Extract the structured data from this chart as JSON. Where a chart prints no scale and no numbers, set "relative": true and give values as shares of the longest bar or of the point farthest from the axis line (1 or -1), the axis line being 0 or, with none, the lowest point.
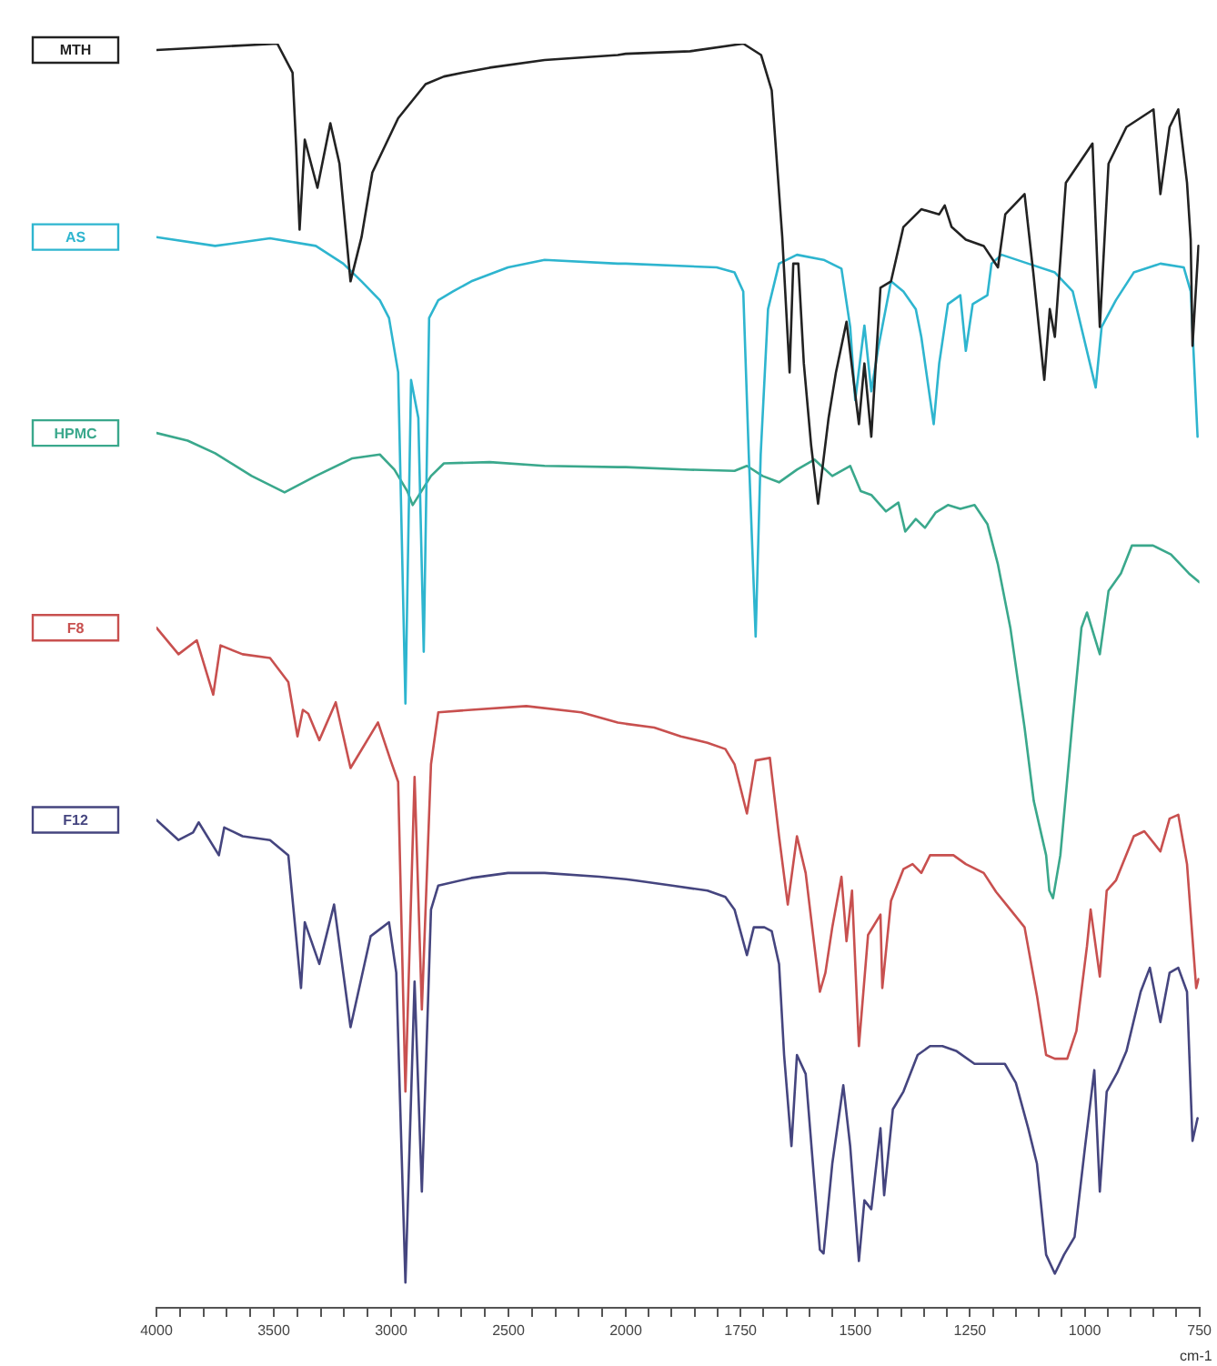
{
  "chart_data": [
    {
      "type": "line",
      "relative": true,
      "xlim": [
        4000,
        2000
      ],
      "xticks": [
        4000,
        {
          "value": 3900,
          "label": null
        },
        {
          "value": 3800,
          "label": null
        },
        {
          "value": 3700,
          "label": null
        },
        {
          "value": 3600,
          "label": null
        },
        3500,
        {
          "value": 3400,
          "label": null
        },
        {
          "value": 3300,
          "label": null
        },
        {
          "value": 3200,
          "label": null
        },
        {
          "value": 3100,
          "label": null
        },
        3000,
        {
          "value": 2900,
          "label": null
        },
        {
          "value": 2800,
          "label": null
        },
        {
          "value": 2700,
          "label": null
        },
        {
          "value": 2600,
          "label": null
        },
        2500,
        {
          "value": 2400,
          "label": null
        },
        {
          "value": 2300,
          "label": null
        },
        {
          "value": 2200,
          "label": null
        },
        {
          "value": 2100,
          "label": null
        },
        2000
      ],
      "series": [
        {
          "name": "MTH",
          "color": "#222222",
          "x": [
            4000,
            3485,
            3420,
            3405,
            3390,
            3368,
            3314,
            3259,
            3220,
            3173,
            3126,
            3080,
            2970,
            2853,
            2775,
            2697,
            2580,
            2346,
            2034,
            2000
          ],
          "values": [
            0.995,
            1.0,
            0.977,
            0.92,
            0.853,
            0.924,
            0.886,
            0.937,
            0.905,
            0.812,
            0.847,
            0.898,
            0.941,
            0.968,
            0.974,
            0.977,
            0.981,
            0.987,
            0.991,
            0.992
          ]
        },
        {
          "name": "AS",
          "color": "#2eb5cf",
          "x": [
            4000,
            3750,
            3516,
            3321,
            3204,
            3126,
            3048,
            3009,
            2970,
            2939,
            2915,
            2884,
            2861,
            2838,
            2799,
            2736,
            2658,
            2502,
            2346,
            2034,
            2000
          ],
          "values": [
            0.847,
            0.84,
            0.846,
            0.84,
            0.826,
            0.812,
            0.797,
            0.783,
            0.74,
            0.478,
            0.734,
            0.704,
            0.519,
            0.783,
            0.797,
            0.804,
            0.812,
            0.823,
            0.829,
            0.826,
            0.826
          ]
        },
        {
          "name": "HPMC",
          "color": "#3aa88c",
          "x": [
            4000,
            3867,
            3750,
            3594,
            3454,
            3321,
            3165,
            3048,
            2986,
            2931,
            2908,
            2830,
            2775,
            2580,
            2346,
            2034,
            2000
          ],
          "values": [
            0.692,
            0.686,
            0.676,
            0.658,
            0.645,
            0.658,
            0.672,
            0.675,
            0.663,
            0.646,
            0.635,
            0.658,
            0.668,
            0.669,
            0.666,
            0.665,
            0.665
          ]
        },
        {
          "name": "F8",
          "color": "#c8504f",
          "x": [
            4000,
            3906,
            3828,
            3758,
            3727,
            3633,
            3516,
            3438,
            3399,
            3376,
            3353,
            3306,
            3236,
            3173,
            3056,
            3002,
            2970,
            2939,
            2900,
            2869,
            2830,
            2799,
            2658,
            2424,
            2190,
            2034,
            2000
          ],
          "values": [
            0.538,
            0.517,
            0.528,
            0.485,
            0.524,
            0.517,
            0.514,
            0.495,
            0.452,
            0.473,
            0.47,
            0.449,
            0.479,
            0.427,
            0.463,
            0.433,
            0.416,
            0.171,
            0.42,
            0.236,
            0.43,
            0.471,
            0.473,
            0.476,
            0.471,
            0.463,
            0.462
          ]
        },
        {
          "name": "F12",
          "color": "#45457f",
          "x": [
            4000,
            3906,
            3844,
            3820,
            3734,
            3711,
            3633,
            3516,
            3438,
            3384,
            3368,
            3306,
            3243,
            3173,
            3087,
            3009,
            2978,
            2939,
            2900,
            2869,
            2830,
            2799,
            2658,
            2502,
            2346,
            2112,
            2000
          ],
          "values": [
            0.386,
            0.37,
            0.376,
            0.384,
            0.358,
            0.38,
            0.373,
            0.37,
            0.358,
            0.253,
            0.305,
            0.272,
            0.319,
            0.222,
            0.294,
            0.305,
            0.265,
            0.02,
            0.258,
            0.092,
            0.315,
            0.334,
            0.34,
            0.344,
            0.344,
            0.341,
            0.339
          ]
        }
      ]
    },
    {
      "type": "line",
      "relative": true,
      "xlabel": "cm-1",
      "xlim": [
        2000,
        750
      ],
      "xticks": [
        {
          "value": 2000,
          "label": null
        },
        {
          "value": 1950,
          "label": null
        },
        {
          "value": 1900,
          "label": null
        },
        {
          "value": 1850,
          "label": null
        },
        {
          "value": 1800,
          "label": null
        },
        1750,
        {
          "value": 1700,
          "label": null
        },
        {
          "value": 1650,
          "label": null
        },
        {
          "value": 1600,
          "label": null
        },
        {
          "value": 1550,
          "label": null
        },
        1500,
        {
          "value": 1450,
          "label": null
        },
        {
          "value": 1400,
          "label": null
        },
        {
          "value": 1350,
          "label": null
        },
        {
          "value": 1300,
          "label": null
        },
        1250,
        {
          "value": 1200,
          "label": null
        },
        {
          "value": 1150,
          "label": null
        },
        {
          "value": 1100,
          "label": null
        },
        {
          "value": 1050,
          "label": null
        },
        1000,
        {
          "value": 950,
          "label": null
        },
        {
          "value": 900,
          "label": null
        },
        {
          "value": 850,
          "label": null
        },
        {
          "value": 800,
          "label": null
        },
        750
      ],
      "series": [
        {
          "color": "#222222",
          "x": [
            2000,
            1860,
            1744,
            1705,
            1682,
            1659,
            1643,
            1635,
            1624,
            1612,
            1596,
            1581,
            1558,
            1542,
            1519,
            1492,
            1480,
            1465,
            1445,
            1422,
            1395,
            1356,
            1317,
            1305,
            1290,
            1259,
            1220,
            1189,
            1173,
            1131,
            1112,
            1088,
            1076,
            1065,
            1041,
            983,
            967,
            948,
            909,
            850,
            835,
            815,
            796,
            777,
            769,
            765,
            752
          ],
          "values": [
            0.992,
            0.994,
            1.0,
            0.991,
            0.963,
            0.847,
            0.74,
            0.826,
            0.826,
            0.747,
            0.682,
            0.636,
            0.704,
            0.74,
            0.78,
            0.699,
            0.747,
            0.689,
            0.807,
            0.812,
            0.855,
            0.869,
            0.865,
            0.872,
            0.855,
            0.845,
            0.84,
            0.823,
            0.865,
            0.881,
            0.819,
            0.734,
            0.79,
            0.768,
            0.89,
            0.921,
            0.776,
            0.905,
            0.934,
            0.948,
            0.881,
            0.934,
            0.948,
            0.89,
            0.845,
            0.761,
            0.84
          ]
        },
        {
          "color": "#2eb5cf",
          "x": [
            2000,
            1802,
            1763,
            1744,
            1732,
            1717,
            1706,
            1690,
            1666,
            1627,
            1569,
            1530,
            1511,
            1500,
            1480,
            1465,
            1449,
            1422,
            1395,
            1368,
            1356,
            1329,
            1317,
            1298,
            1271,
            1259,
            1244,
            1212,
            1203,
            1181,
            1123,
            1065,
            1026,
            976,
            963,
            932,
            893,
            835,
            784,
            769,
            754
          ],
          "values": [
            0.826,
            0.823,
            0.819,
            0.804,
            0.675,
            0.531,
            0.675,
            0.79,
            0.826,
            0.833,
            0.829,
            0.822,
            0.776,
            0.718,
            0.777,
            0.725,
            0.761,
            0.812,
            0.804,
            0.79,
            0.768,
            0.699,
            0.747,
            0.794,
            0.801,
            0.757,
            0.794,
            0.801,
            0.826,
            0.833,
            0.826,
            0.819,
            0.804,
            0.728,
            0.776,
            0.797,
            0.819,
            0.826,
            0.823,
            0.804,
            0.689
          ]
        },
        {
          "color": "#3aa88c",
          "x": [
            2000,
            1860,
            1763,
            1736,
            1702,
            1666,
            1627,
            1589,
            1550,
            1511,
            1488,
            1465,
            1433,
            1406,
            1391,
            1368,
            1348,
            1325,
            1298,
            1271,
            1240,
            1212,
            1189,
            1162,
            1131,
            1111,
            1084,
            1077,
            1069,
            1053,
            1026,
            1007,
            995,
            967,
            948,
            921,
            897,
            851,
            812,
            773,
            750
          ],
          "values": [
            0.665,
            0.663,
            0.662,
            0.666,
            0.658,
            0.653,
            0.663,
            0.671,
            0.658,
            0.666,
            0.646,
            0.643,
            0.63,
            0.637,
            0.614,
            0.624,
            0.617,
            0.629,
            0.635,
            0.632,
            0.635,
            0.62,
            0.588,
            0.538,
            0.459,
            0.401,
            0.358,
            0.33,
            0.324,
            0.358,
            0.466,
            0.538,
            0.55,
            0.517,
            0.567,
            0.581,
            0.603,
            0.603,
            0.596,
            0.581,
            0.574
          ]
        },
        {
          "color": "#c8504f",
          "x": [
            2000,
            1938,
            1880,
            1822,
            1783,
            1763,
            1736,
            1717,
            1686,
            1666,
            1647,
            1627,
            1608,
            1577,
            1565,
            1550,
            1530,
            1519,
            1507,
            1492,
            1472,
            1445,
            1441,
            1422,
            1395,
            1375,
            1356,
            1337,
            1310,
            1286,
            1259,
            1220,
            1193,
            1162,
            1131,
            1104,
            1084,
            1065,
            1038,
            1018,
            995,
            987,
            967,
            952,
            932,
            893,
            870,
            835,
            815,
            796,
            777,
            757,
            752
          ],
          "values": [
            0.462,
            0.459,
            0.452,
            0.447,
            0.442,
            0.43,
            0.391,
            0.433,
            0.435,
            0.373,
            0.319,
            0.373,
            0.344,
            0.25,
            0.265,
            0.301,
            0.341,
            0.29,
            0.33,
            0.207,
            0.295,
            0.311,
            0.253,
            0.322,
            0.347,
            0.351,
            0.344,
            0.358,
            0.358,
            0.358,
            0.351,
            0.344,
            0.329,
            0.315,
            0.301,
            0.247,
            0.2,
            0.197,
            0.197,
            0.219,
            0.286,
            0.315,
            0.262,
            0.33,
            0.338,
            0.373,
            0.377,
            0.361,
            0.387,
            0.39,
            0.351,
            0.253,
            0.26
          ]
        },
        {
          "color": "#45457f",
          "x": [
            2000,
            1977,
            1899,
            1822,
            1783,
            1763,
            1736,
            1721,
            1698,
            1682,
            1666,
            1655,
            1639,
            1627,
            1608,
            1589,
            1577,
            1569,
            1550,
            1526,
            1511,
            1492,
            1480,
            1465,
            1445,
            1437,
            1418,
            1395,
            1364,
            1337,
            1310,
            1279,
            1240,
            1174,
            1150,
            1123,
            1104,
            1084,
            1065,
            1045,
            1022,
            999,
            979,
            967,
            952,
            929,
            909,
            878,
            858,
            835,
            815,
            796,
            777,
            765,
            754
          ],
          "values": [
            0.339,
            0.338,
            0.334,
            0.33,
            0.325,
            0.315,
            0.279,
            0.301,
            0.301,
            0.298,
            0.272,
            0.2,
            0.128,
            0.2,
            0.185,
            0.099,
            0.046,
            0.043,
            0.114,
            0.176,
            0.128,
            0.037,
            0.085,
            0.078,
            0.142,
            0.089,
            0.157,
            0.171,
            0.2,
            0.207,
            0.207,
            0.203,
            0.193,
            0.193,
            0.178,
            0.142,
            0.114,
            0.042,
            0.027,
            0.042,
            0.056,
            0.128,
            0.188,
            0.092,
            0.171,
            0.186,
            0.203,
            0.25,
            0.269,
            0.226,
            0.265,
            0.269,
            0.25,
            0.132,
            0.15
          ]
        }
      ]
    }
  ]
}
